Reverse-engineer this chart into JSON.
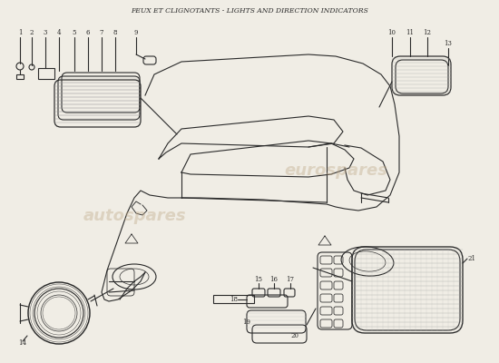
{
  "title_line1": "FEUX ET CLIGNOTANTS - LIGHTS AND DIRECTION INDICATORS",
  "background_color": "#f0ede5",
  "line_color": "#2a2a2a",
  "watermark_text1": "autospares",
  "watermark_text2": "eurospares"
}
